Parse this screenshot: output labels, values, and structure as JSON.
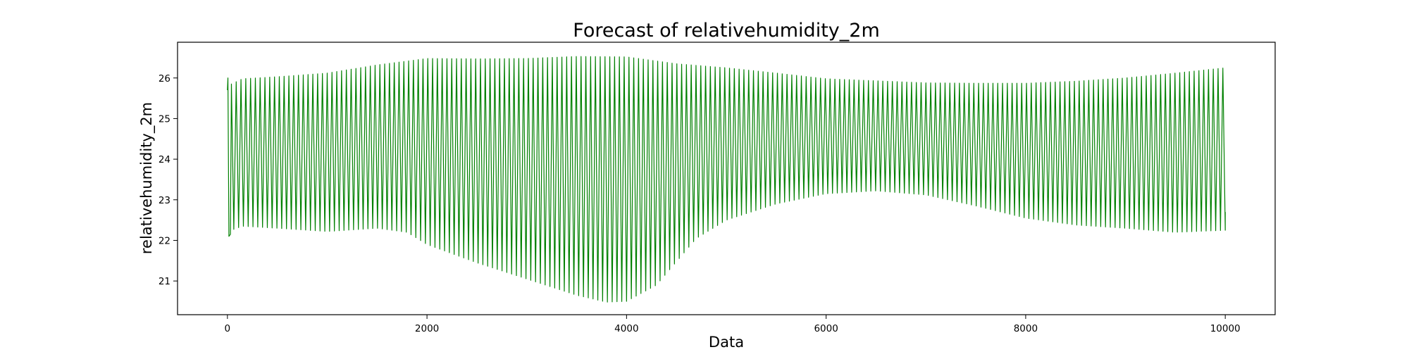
{
  "chart_data": {
    "type": "line",
    "title": "Forecast of relativehumidity_2m",
    "xlabel": "Data",
    "ylabel": "relativehumidity_2m",
    "xlim": [
      -500,
      10500
    ],
    "ylim": [
      20.17,
      26.88
    ],
    "xticks": [
      0,
      2000,
      4000,
      6000,
      8000,
      10000
    ],
    "yticks": [
      21,
      22,
      23,
      24,
      25,
      26
    ],
    "grid": false,
    "legend": "none",
    "series": [
      {
        "color": "#008000",
        "x_start": 0,
        "x_end": 10000,
        "cycle_period": 48,
        "initial_points": [
          [
            0,
            25.7
          ],
          [
            5,
            26.0
          ],
          [
            15,
            22.1
          ],
          [
            30,
            22.15
          ]
        ],
        "final_value": 22.7,
        "upper_envelope": [
          [
            40,
            25.85
          ],
          [
            150,
            25.98
          ],
          [
            500,
            26.03
          ],
          [
            1000,
            26.12
          ],
          [
            1500,
            26.32
          ],
          [
            2000,
            26.48
          ],
          [
            2500,
            26.47
          ],
          [
            3000,
            26.48
          ],
          [
            3500,
            26.53
          ],
          [
            4000,
            26.52
          ],
          [
            4500,
            26.35
          ],
          [
            5000,
            26.25
          ],
          [
            5500,
            26.12
          ],
          [
            6000,
            25.98
          ],
          [
            6500,
            25.93
          ],
          [
            7000,
            25.88
          ],
          [
            7500,
            25.87
          ],
          [
            8000,
            25.87
          ],
          [
            8500,
            25.92
          ],
          [
            9000,
            26.0
          ],
          [
            9500,
            26.12
          ],
          [
            10000,
            26.25
          ]
        ],
        "lower_envelope": [
          [
            40,
            22.25
          ],
          [
            150,
            22.35
          ],
          [
            500,
            22.3
          ],
          [
            1000,
            22.22
          ],
          [
            1500,
            22.3
          ],
          [
            1800,
            22.2
          ],
          [
            2000,
            21.9
          ],
          [
            2500,
            21.45
          ],
          [
            3000,
            21.05
          ],
          [
            3500,
            20.65
          ],
          [
            3800,
            20.48
          ],
          [
            4000,
            20.5
          ],
          [
            4300,
            20.9
          ],
          [
            4700,
            22.05
          ],
          [
            5000,
            22.5
          ],
          [
            5500,
            22.9
          ],
          [
            6000,
            23.15
          ],
          [
            6500,
            23.22
          ],
          [
            7000,
            23.12
          ],
          [
            7500,
            22.85
          ],
          [
            8000,
            22.55
          ],
          [
            8500,
            22.38
          ],
          [
            9000,
            22.3
          ],
          [
            9500,
            22.2
          ],
          [
            10000,
            22.25
          ]
        ]
      }
    ]
  }
}
